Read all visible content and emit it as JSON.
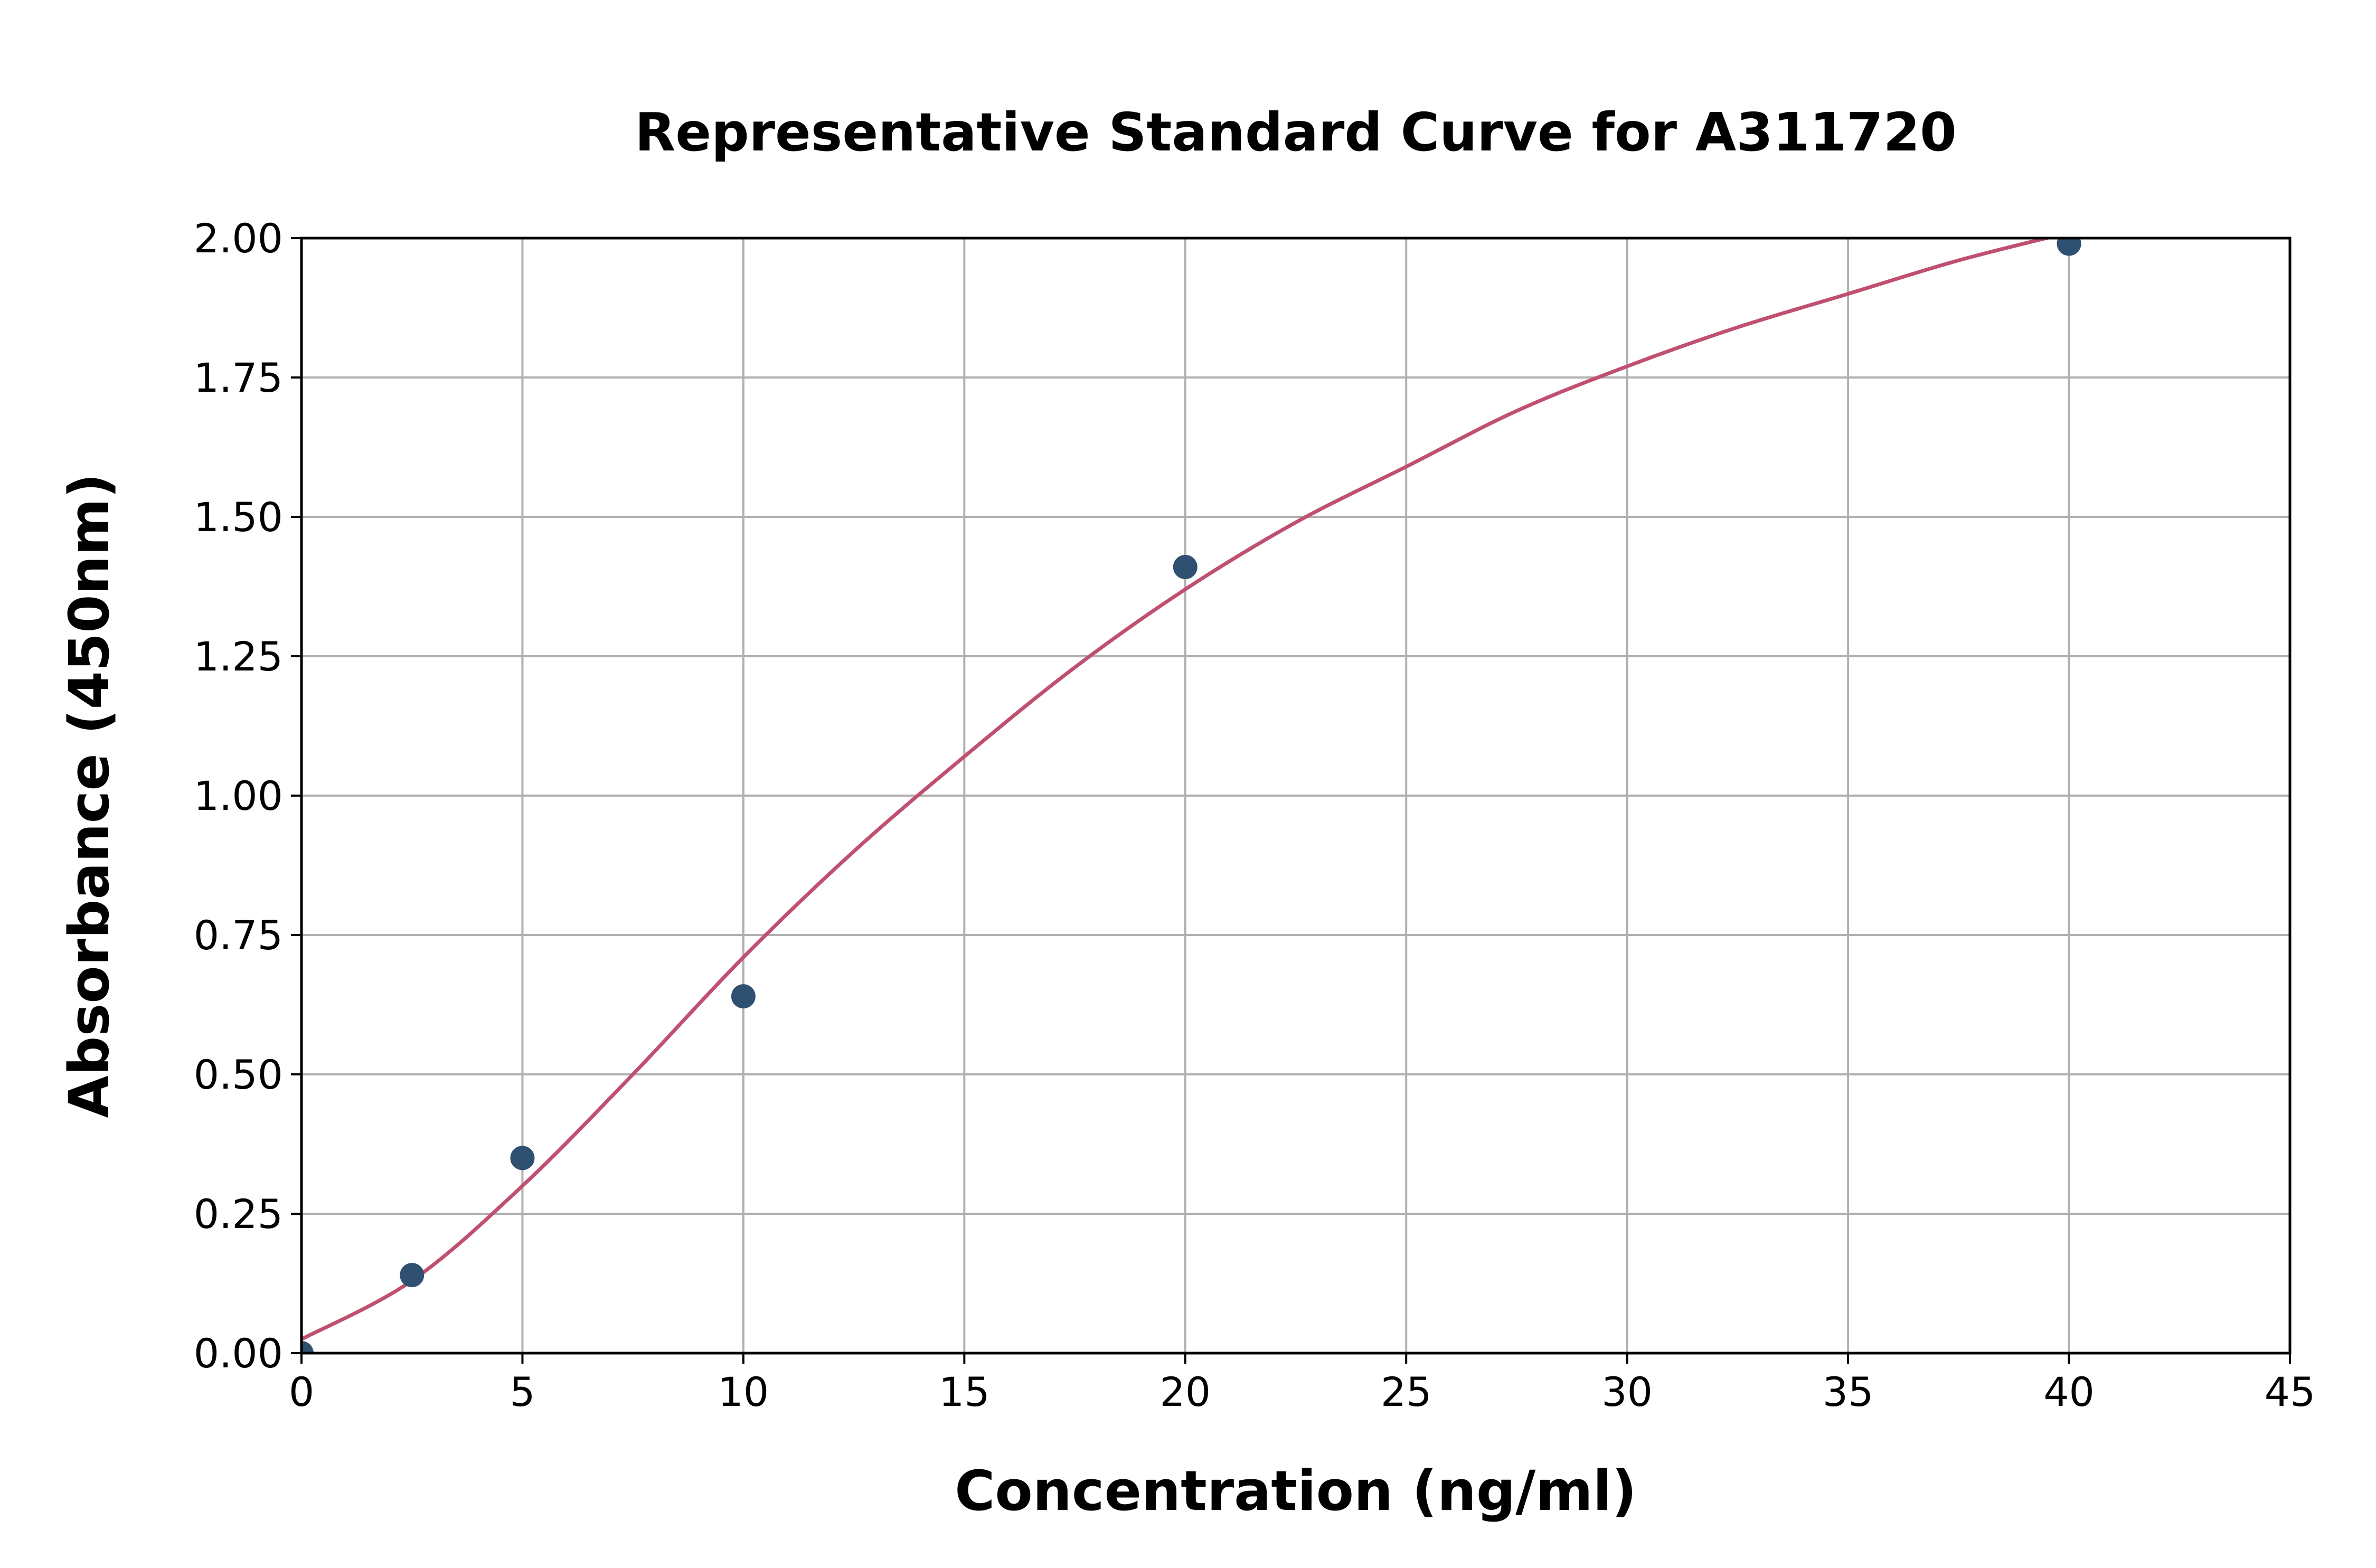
{
  "chart_data": {
    "type": "scatter",
    "title": "Representative Standard Curve for A311720",
    "xlabel": "Concentration (ng/ml)",
    "ylabel": "Absorbance (450nm)",
    "xlim": [
      0,
      45
    ],
    "ylim": [
      0,
      2.0
    ],
    "xticks": [
      "0",
      "5",
      "10",
      "15",
      "20",
      "25",
      "30",
      "35",
      "40",
      "45"
    ],
    "yticks": [
      "0.00",
      "0.25",
      "0.50",
      "0.75",
      "1.00",
      "1.25",
      "1.50",
      "1.75",
      "2.00"
    ],
    "grid": true,
    "points": {
      "x": [
        0,
        2.5,
        5,
        10,
        20,
        40
      ],
      "y": [
        0.0,
        0.14,
        0.35,
        0.64,
        1.41,
        1.99
      ],
      "color": "#2f5070"
    },
    "fit_curve": {
      "x": [
        0,
        2.5,
        5,
        7.5,
        10,
        12.5,
        15,
        17.5,
        20,
        22.5,
        25,
        27.5,
        30,
        32.5,
        35,
        37.5,
        40
      ],
      "y": [
        0.025,
        0.13,
        0.3,
        0.5,
        0.71,
        0.9,
        1.07,
        1.23,
        1.37,
        1.49,
        1.59,
        1.69,
        1.77,
        1.84,
        1.9,
        1.96,
        2.01
      ],
      "color": "#c05070"
    }
  }
}
